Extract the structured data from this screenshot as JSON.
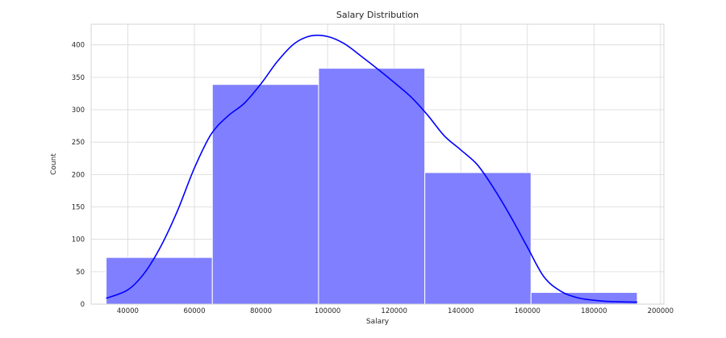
{
  "colors": {
    "bar_fill": "#7f7fff",
    "bar_stroke": "#ffffff",
    "kde_line": "#0000ff",
    "grid": "#d9d9d9"
  },
  "chart_data": {
    "type": "bar",
    "subtype": "histogram-with-kde",
    "title": "Salary Distribution",
    "xlabel": "Salary",
    "ylabel": "Count",
    "xlim": [
      29000,
      201000
    ],
    "ylim": [
      0,
      432
    ],
    "x_ticks": [
      40000,
      60000,
      80000,
      100000,
      120000,
      140000,
      160000,
      180000,
      200000
    ],
    "x_tick_labels": [
      "40000",
      "60000",
      "80000",
      "100000",
      "120000",
      "140000",
      "160000",
      "180000",
      "200000"
    ],
    "y_ticks": [
      0,
      50,
      100,
      150,
      200,
      250,
      300,
      350,
      400
    ],
    "y_tick_labels": [
      "0",
      "50",
      "100",
      "150",
      "200",
      "250",
      "300",
      "350",
      "400"
    ],
    "grid": true,
    "bins": [
      {
        "x0": 33500,
        "x1": 65400,
        "count": 72
      },
      {
        "x0": 65400,
        "x1": 97300,
        "count": 339
      },
      {
        "x0": 97300,
        "x1": 129200,
        "count": 364
      },
      {
        "x0": 129200,
        "x1": 161100,
        "count": 203
      },
      {
        "x0": 161100,
        "x1": 193000,
        "count": 18
      }
    ],
    "kde": {
      "x": [
        33500,
        40000,
        45000,
        50000,
        55000,
        60000,
        65000,
        70000,
        75000,
        80000,
        85000,
        90000,
        95000,
        100000,
        105000,
        110000,
        115000,
        120000,
        125000,
        130000,
        135000,
        140000,
        145000,
        150000,
        155000,
        160000,
        165000,
        170000,
        175000,
        180000,
        185000,
        193000
      ],
      "y": [
        9,
        22,
        48,
        90,
        145,
        210,
        262,
        290,
        310,
        340,
        375,
        402,
        414,
        413,
        402,
        383,
        363,
        342,
        320,
        292,
        260,
        238,
        215,
        178,
        135,
        88,
        42,
        20,
        10,
        6,
        4,
        3
      ]
    }
  }
}
